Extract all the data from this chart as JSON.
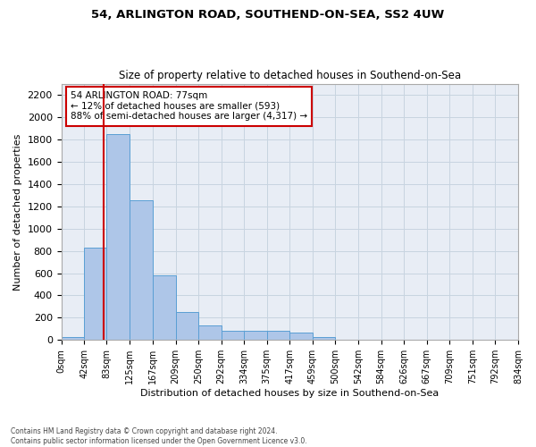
{
  "title1": "54, ARLINGTON ROAD, SOUTHEND-ON-SEA, SS2 4UW",
  "title2": "Size of property relative to detached houses in Southend-on-Sea",
  "xlabel": "Distribution of detached houses by size in Southend-on-Sea",
  "ylabel": "Number of detached properties",
  "footnote": "Contains HM Land Registry data © Crown copyright and database right 2024.\nContains public sector information licensed under the Open Government Licence v3.0.",
  "bin_edges": [
    0,
    42,
    83,
    125,
    167,
    209,
    250,
    292,
    334,
    375,
    417,
    459,
    500,
    542,
    584,
    626,
    667,
    709,
    751,
    792,
    834
  ],
  "bar_heights": [
    30,
    830,
    1850,
    1250,
    580,
    250,
    130,
    80,
    80,
    80,
    70,
    30,
    0,
    0,
    0,
    0,
    0,
    0,
    0,
    0
  ],
  "bar_color": "#aec6e8",
  "bar_edge_color": "#5a9fd4",
  "grid_color": "#c8d4e0",
  "bg_color": "#e8edf5",
  "property_line_x": 77,
  "property_line_color": "#cc0000",
  "annotation_text": "54 ARLINGTON ROAD: 77sqm\n← 12% of detached houses are smaller (593)\n88% of semi-detached houses are larger (4,317) →",
  "annotation_box_color": "#cc0000",
  "ylim": [
    0,
    2300
  ],
  "yticks": [
    0,
    200,
    400,
    600,
    800,
    1000,
    1200,
    1400,
    1600,
    1800,
    2000,
    2200
  ],
  "tick_labels": [
    "0sqm",
    "42sqm",
    "83sqm",
    "125sqm",
    "167sqm",
    "209sqm",
    "250sqm",
    "292sqm",
    "334sqm",
    "375sqm",
    "417sqm",
    "459sqm",
    "500sqm",
    "542sqm",
    "584sqm",
    "626sqm",
    "667sqm",
    "709sqm",
    "751sqm",
    "792sqm",
    "834sqm"
  ]
}
